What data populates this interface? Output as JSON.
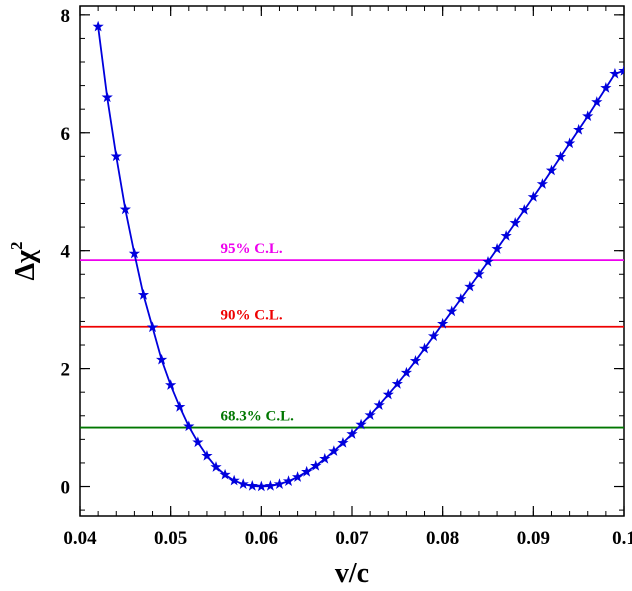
{
  "chart_data": {
    "type": "line",
    "xlabel": "v/c",
    "ylabel": "Δχ²",
    "ylabel_main": "Δχ",
    "ylabel_sup": "2",
    "xlim": [
      0.04,
      0.1
    ],
    "ylim": [
      -0.5,
      8.15
    ],
    "xticks": [
      0.04,
      0.05,
      0.06,
      0.07,
      0.08,
      0.09,
      0.1
    ],
    "xtick_labels": [
      "0.04",
      "0.05",
      "0.06",
      "0.07",
      "0.08",
      "0.09",
      "0.1"
    ],
    "yticks": [
      0,
      2,
      4,
      6,
      8
    ],
    "ytick_labels": [
      "0",
      "2",
      "4",
      "6",
      "8"
    ],
    "grid": false,
    "series": [
      {
        "color": "#0000dd",
        "marker": "star",
        "x": [
          0.042,
          0.043,
          0.044,
          0.045,
          0.046,
          0.047,
          0.048,
          0.049,
          0.05,
          0.051,
          0.052,
          0.053,
          0.054,
          0.055,
          0.056,
          0.057,
          0.058,
          0.059,
          0.06,
          0.061,
          0.062,
          0.063,
          0.064,
          0.065,
          0.066,
          0.067,
          0.068,
          0.069,
          0.07,
          0.071,
          0.072,
          0.073,
          0.074,
          0.075,
          0.076,
          0.077,
          0.078,
          0.079,
          0.08,
          0.081,
          0.082,
          0.083,
          0.084,
          0.085,
          0.086,
          0.087,
          0.088,
          0.089,
          0.09,
          0.091,
          0.092,
          0.093,
          0.094,
          0.095,
          0.096,
          0.097,
          0.098,
          0.099,
          0.1
        ],
        "y": [
          7.8,
          6.6,
          5.6,
          4.7,
          3.95,
          3.25,
          2.7,
          2.15,
          1.72,
          1.35,
          1.02,
          0.75,
          0.52,
          0.33,
          0.2,
          0.1,
          0.04,
          0.01,
          0.0,
          0.01,
          0.04,
          0.09,
          0.16,
          0.25,
          0.35,
          0.47,
          0.6,
          0.74,
          0.89,
          1.05,
          1.21,
          1.38,
          1.56,
          1.74,
          1.93,
          2.13,
          2.34,
          2.55,
          2.76,
          2.97,
          3.18,
          3.39,
          3.6,
          3.81,
          4.03,
          4.25,
          4.47,
          4.69,
          4.91,
          5.13,
          5.36,
          5.59,
          5.82,
          6.05,
          6.28,
          6.52,
          6.76,
          7.0,
          7.05
        ]
      }
    ],
    "reference_lines": [
      {
        "y": 3.84,
        "label": "95% C.L.",
        "color": "#ee00ee",
        "label_x": 0.0555
      },
      {
        "y": 2.71,
        "label": "90% C.L.",
        "color": "#ee0000",
        "label_x": 0.0555
      },
      {
        "y": 1.0,
        "label": "68.3% C.L.",
        "color": "#007700",
        "label_x": 0.0555
      }
    ]
  }
}
